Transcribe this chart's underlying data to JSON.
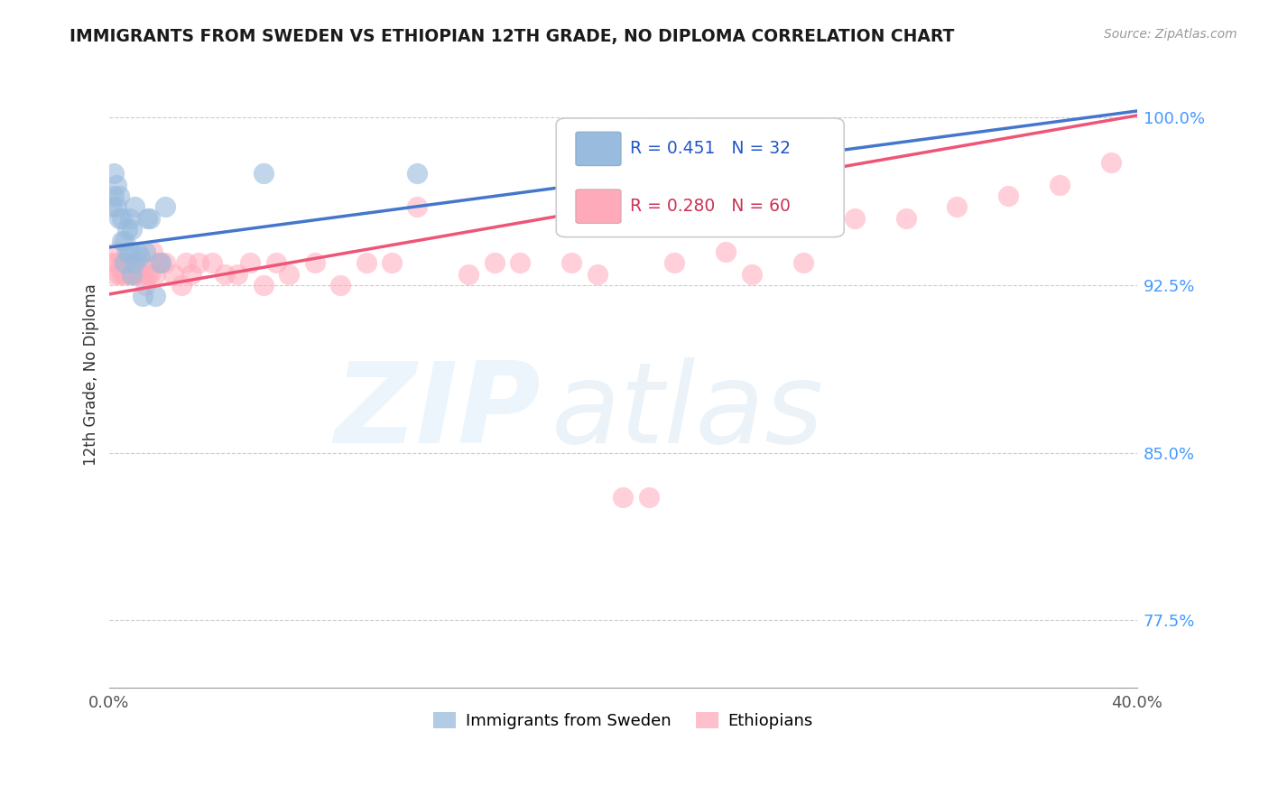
{
  "title": "IMMIGRANTS FROM SWEDEN VS ETHIOPIAN 12TH GRADE, NO DIPLOMA CORRELATION CHART",
  "source": "Source: ZipAtlas.com",
  "ylabel": "12th Grade, No Diploma",
  "xlim": [
    0.0,
    0.4
  ],
  "ylim": [
    0.745,
    1.025
  ],
  "yticks": [
    0.775,
    0.85,
    0.925,
    1.0
  ],
  "ytick_labels": [
    "77.5%",
    "85.0%",
    "92.5%",
    "100.0%"
  ],
  "xtick_labels": [
    "0.0%",
    "40.0%"
  ],
  "xticks": [
    0.0,
    0.4
  ],
  "legend_blue_r": "R = 0.451",
  "legend_blue_n": "N = 32",
  "legend_pink_r": "R = 0.280",
  "legend_pink_n": "N = 60",
  "legend_label_blue": "Immigrants from Sweden",
  "legend_label_pink": "Ethiopians",
  "blue_color": "#99bbdd",
  "pink_color": "#ffaabb",
  "blue_line_color": "#4477cc",
  "pink_line_color": "#ee5577",
  "legend_r_blue_color": "#2255cc",
  "legend_r_pink_color": "#cc3355",
  "sweden_x": [
    0.001,
    0.002,
    0.002,
    0.003,
    0.003,
    0.004,
    0.004,
    0.005,
    0.005,
    0.006,
    0.006,
    0.007,
    0.007,
    0.008,
    0.008,
    0.009,
    0.009,
    0.01,
    0.01,
    0.011,
    0.012,
    0.013,
    0.014,
    0.015,
    0.016,
    0.018,
    0.02,
    0.022,
    0.06,
    0.12,
    0.195,
    0.275
  ],
  "sweden_y": [
    0.96,
    0.965,
    0.975,
    0.96,
    0.97,
    0.955,
    0.965,
    0.945,
    0.955,
    0.935,
    0.945,
    0.94,
    0.95,
    0.955,
    0.94,
    0.93,
    0.95,
    0.935,
    0.96,
    0.94,
    0.938,
    0.92,
    0.94,
    0.955,
    0.955,
    0.92,
    0.935,
    0.96,
    0.975,
    0.975,
    0.975,
    0.975
  ],
  "ethiopian_x": [
    0.001,
    0.002,
    0.003,
    0.003,
    0.004,
    0.005,
    0.005,
    0.006,
    0.006,
    0.007,
    0.007,
    0.008,
    0.009,
    0.01,
    0.01,
    0.011,
    0.012,
    0.013,
    0.014,
    0.015,
    0.016,
    0.017,
    0.018,
    0.019,
    0.02,
    0.022,
    0.025,
    0.028,
    0.03,
    0.032,
    0.035,
    0.04,
    0.045,
    0.05,
    0.055,
    0.06,
    0.065,
    0.07,
    0.08,
    0.09,
    0.1,
    0.11,
    0.12,
    0.14,
    0.15,
    0.16,
    0.18,
    0.19,
    0.2,
    0.21,
    0.22,
    0.24,
    0.25,
    0.27,
    0.29,
    0.31,
    0.33,
    0.35,
    0.37,
    0.39
  ],
  "ethiopian_y": [
    0.935,
    0.93,
    0.935,
    0.94,
    0.93,
    0.935,
    0.93,
    0.935,
    0.93,
    0.935,
    0.93,
    0.935,
    0.93,
    0.93,
    0.935,
    0.93,
    0.935,
    0.93,
    0.925,
    0.93,
    0.93,
    0.94,
    0.93,
    0.935,
    0.935,
    0.935,
    0.93,
    0.925,
    0.935,
    0.93,
    0.935,
    0.935,
    0.93,
    0.93,
    0.935,
    0.925,
    0.935,
    0.93,
    0.935,
    0.925,
    0.935,
    0.935,
    0.96,
    0.93,
    0.935,
    0.935,
    0.935,
    0.93,
    0.83,
    0.83,
    0.935,
    0.94,
    0.93,
    0.935,
    0.955,
    0.955,
    0.96,
    0.965,
    0.97,
    0.98
  ],
  "blue_line_x0": 0.0,
  "blue_line_y0": 0.942,
  "blue_line_x1": 0.4,
  "blue_line_y1": 1.003,
  "pink_line_x0": 0.0,
  "pink_line_y0": 0.921,
  "pink_line_x1": 0.4,
  "pink_line_y1": 1.001
}
